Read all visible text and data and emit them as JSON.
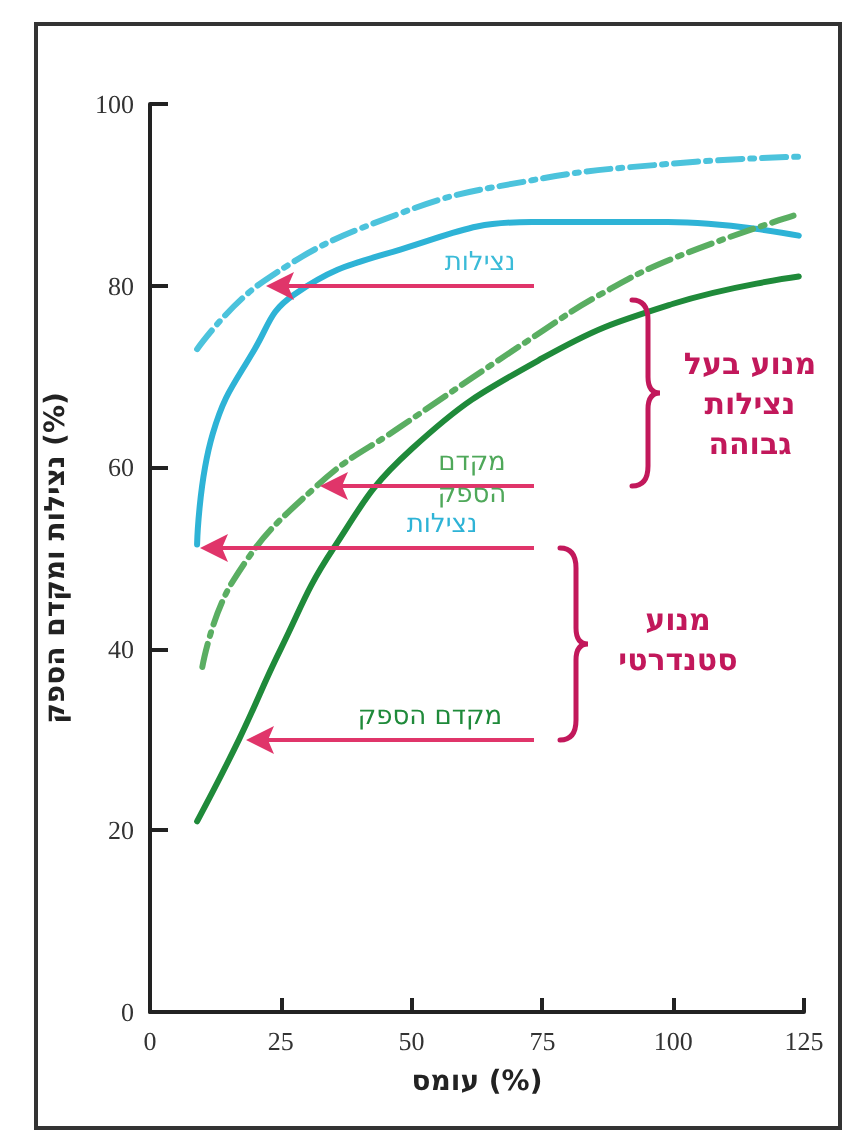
{
  "chart_data": {
    "type": "line",
    "xlabel": "עומס (%)",
    "ylabel": "נצילות ומקדם הספק (%)",
    "xlim": [
      0,
      125
    ],
    "xticks": [
      0,
      25,
      50,
      75,
      100,
      125
    ],
    "ylim": [
      0,
      100
    ],
    "yticks": [
      0,
      20,
      40,
      60,
      80,
      100
    ],
    "grid": false,
    "marker": "none",
    "series": [
      {
        "color": "#4cc3dc",
        "line_style": "dashed",
        "x": [
          9,
          22,
          48,
          73,
          99,
          124
        ],
        "values": [
          73,
          80.6,
          88,
          91.6,
          93.4,
          94.2
        ]
      },
      {
        "color": "#2eb3d6",
        "line_style": "solid",
        "x": [
          9,
          12,
          20,
          27.5,
          48,
          73,
          99,
          124
        ],
        "values": [
          51.5,
          63.7,
          73,
          79,
          84,
          87,
          87,
          85.5
        ]
      },
      {
        "color": "#5aae62",
        "line_style": "dashed",
        "x": [
          10,
          16,
          32,
          48,
          75,
          86,
          100,
          123
        ],
        "values": [
          38,
          47.6,
          58,
          64.5,
          75,
          79,
          83,
          87.7
        ]
      },
      {
        "color": "#1f8a3a",
        "line_style": "solid",
        "x": [
          9,
          17,
          25,
          35,
          50,
          75,
          100,
          124
        ],
        "values": [
          21,
          30,
          40,
          51,
          62,
          72,
          78,
          81
        ]
      }
    ],
    "annotations": [
      "נצילות",
      "מקדם הספק",
      "נצילות",
      "מקדם הספק",
      "מנוע בעל נצילות גבוהה",
      "מנוע סטנדרטי"
    ]
  }
}
